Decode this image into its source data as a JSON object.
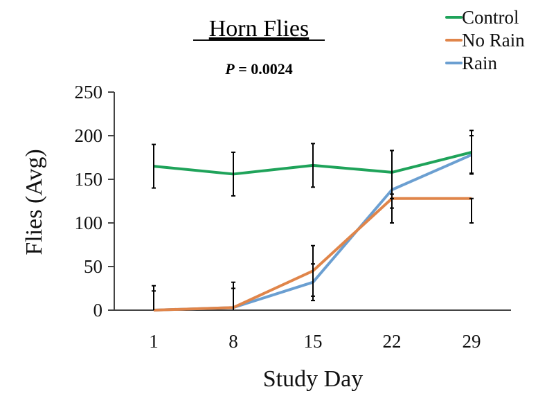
{
  "chart_data": {
    "type": "line",
    "title": "Horn Flies",
    "subtitle_italic": "P",
    "subtitle_rest": " = 0.0024",
    "xlabel": "Study Day",
    "ylabel": "Flies (Avg)",
    "categories": [
      "1",
      "8",
      "15",
      "22",
      "29"
    ],
    "ylim": [
      0,
      250
    ],
    "yticks": [
      0,
      50,
      100,
      150,
      200,
      250
    ],
    "grid": false,
    "legend_position": "top-right",
    "series": [
      {
        "name": "Control",
        "color": "#1fa35a",
        "values": [
          165,
          156,
          166,
          158,
          181
        ],
        "error_upper": [
          190,
          181,
          191,
          183,
          206
        ],
        "error_lower": [
          140,
          131,
          141,
          133,
          156
        ]
      },
      {
        "name": "No Rain",
        "color": "#e0854a",
        "values": [
          0,
          3,
          45,
          128,
          128
        ],
        "error_upper": [
          28,
          32,
          74,
          128,
          128
        ],
        "error_lower": [
          0,
          0,
          16,
          100,
          100
        ]
      },
      {
        "name": "Rain",
        "color": "#6b9fd1",
        "values": [
          0,
          3,
          32,
          138,
          178
        ],
        "error_upper": [
          22,
          25,
          53,
          183,
          200
        ],
        "error_lower": [
          0,
          0,
          11,
          117,
          157
        ]
      }
    ]
  }
}
